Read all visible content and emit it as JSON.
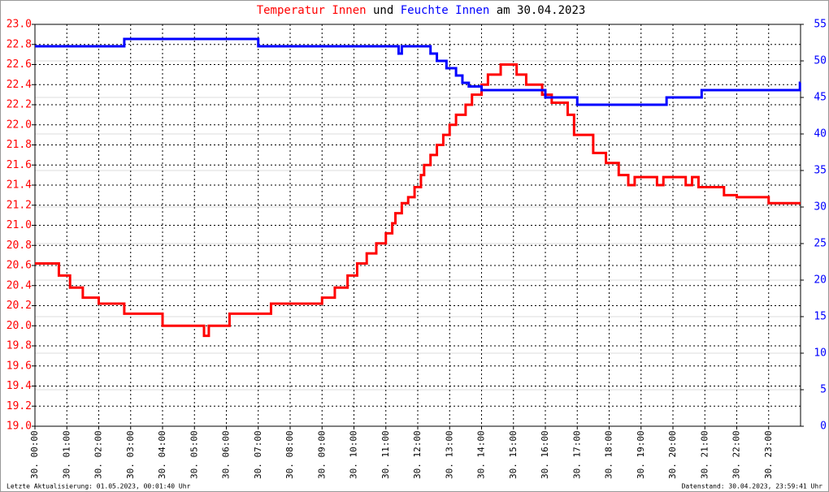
{
  "chart_data": {
    "type": "line",
    "title_parts": [
      "und",
      "am 30.04.2023"
    ],
    "footer_left": "Letzte Aktualisierung: 01.05.2023, 00:01:40 Uhr",
    "footer_right": "Datenstand: 30.04.2023, 23:59:41 Uhr",
    "step": true,
    "grid": true,
    "xlim": [
      0,
      24
    ],
    "xticks": [
      {
        "value": 0,
        "label": "30. 00:00"
      },
      {
        "value": 1,
        "label": "30. 01:00"
      },
      {
        "value": 2,
        "label": "30. 02:00"
      },
      {
        "value": 3,
        "label": "30. 03:00"
      },
      {
        "value": 4,
        "label": "30. 04:00"
      },
      {
        "value": 5,
        "label": "30. 05:00"
      },
      {
        "value": 6,
        "label": "30. 06:00"
      },
      {
        "value": 7,
        "label": "30. 07:00"
      },
      {
        "value": 8,
        "label": "30. 08:00"
      },
      {
        "value": 9,
        "label": "30. 09:00"
      },
      {
        "value": 10,
        "label": "30. 10:00"
      },
      {
        "value": 11,
        "label": "30. 11:00"
      },
      {
        "value": 12,
        "label": "30. 12:00"
      },
      {
        "value": 13,
        "label": "30. 13:00"
      },
      {
        "value": 14,
        "label": "30. 14:00"
      },
      {
        "value": 15,
        "label": "30. 15:00"
      },
      {
        "value": 16,
        "label": "30. 16:00"
      },
      {
        "value": 17,
        "label": "30. 17:00"
      },
      {
        "value": 18,
        "label": "30. 18:00"
      },
      {
        "value": 19,
        "label": "30. 19:00"
      },
      {
        "value": 20,
        "label": "30. 20:00"
      },
      {
        "value": 21,
        "label": "30. 21:00"
      },
      {
        "value": 22,
        "label": "30. 22:00"
      },
      {
        "value": 23,
        "label": "30. 23:00"
      }
    ],
    "ylim": [
      19.0,
      23.0
    ],
    "yticks": [
      {
        "value": 19.0,
        "label": "19.0"
      },
      {
        "value": 19.2,
        "label": "19.2"
      },
      {
        "value": 19.4,
        "label": "19.4"
      },
      {
        "value": 19.6,
        "label": "19.6"
      },
      {
        "value": 19.8,
        "label": "19.8"
      },
      {
        "value": 20.0,
        "label": "20.0"
      },
      {
        "value": 20.2,
        "label": "20.2"
      },
      {
        "value": 20.4,
        "label": "20.4"
      },
      {
        "value": 20.6,
        "label": "20.6"
      },
      {
        "value": 20.8,
        "label": "20.8"
      },
      {
        "value": 21.0,
        "label": "21.0"
      },
      {
        "value": 21.2,
        "label": "21.2"
      },
      {
        "value": 21.4,
        "label": "21.4"
      },
      {
        "value": 21.6,
        "label": "21.6"
      },
      {
        "value": 21.8,
        "label": "21.8"
      },
      {
        "value": 22.0,
        "label": "22.0"
      },
      {
        "value": 22.2,
        "label": "22.2"
      },
      {
        "value": 22.4,
        "label": "22.4"
      },
      {
        "value": 22.6,
        "label": "22.6"
      },
      {
        "value": 22.8,
        "label": "22.8"
      },
      {
        "value": 23.0,
        "label": "23.0"
      }
    ],
    "y2lim": [
      0,
      55
    ],
    "y2ticks": [
      0,
      5,
      10,
      15,
      20,
      25,
      30,
      35,
      40,
      45,
      50,
      55
    ],
    "series": [
      {
        "name": "Temperatur Innen",
        "color": "#ff0000",
        "x": [
          0,
          0.75,
          1.1,
          1.5,
          2.0,
          2.8,
          4.0,
          5.3,
          5.45,
          6.1,
          7.4,
          9.0,
          9.4,
          9.8,
          10.1,
          10.4,
          10.7,
          11.0,
          11.2,
          11.3,
          11.5,
          11.7,
          11.9,
          12.1,
          12.2,
          12.4,
          12.6,
          12.8,
          13.0,
          13.2,
          13.5,
          13.7,
          14.0,
          14.2,
          14.6,
          15.1,
          15.4,
          15.9,
          16.2,
          16.7,
          16.9,
          17.5,
          17.9,
          18.3,
          18.6,
          18.8,
          19.5,
          19.7,
          20.4,
          20.6,
          20.8,
          21.6,
          22.0,
          23.0
        ],
        "values": [
          20.62,
          20.5,
          20.38,
          20.28,
          20.22,
          20.12,
          20.0,
          19.9,
          20.0,
          20.12,
          20.22,
          20.28,
          20.38,
          20.5,
          20.62,
          20.72,
          20.82,
          20.92,
          21.02,
          21.12,
          21.22,
          21.28,
          21.38,
          21.5,
          21.6,
          21.7,
          21.8,
          21.9,
          22.0,
          22.1,
          22.2,
          22.3,
          22.4,
          22.5,
          22.6,
          22.5,
          22.4,
          22.3,
          22.22,
          22.1,
          21.9,
          21.72,
          21.62,
          21.5,
          21.4,
          21.48,
          21.4,
          21.48,
          21.4,
          21.48,
          21.38,
          21.3,
          21.28,
          21.22
        ]
      },
      {
        "name": "Feuchte Innen",
        "color": "#0000ff",
        "axis": "y2",
        "x": [
          0,
          2.8,
          7.0,
          11.4,
          11.5,
          12.4,
          12.6,
          12.9,
          13.2,
          13.4,
          13.6,
          14.0,
          16.0,
          17.0,
          19.8,
          20.9,
          23.98
        ],
        "values": [
          52,
          53,
          52,
          51,
          52,
          51,
          50,
          49,
          48,
          47,
          46.5,
          46,
          45,
          44,
          45,
          46,
          47
        ]
      }
    ]
  }
}
